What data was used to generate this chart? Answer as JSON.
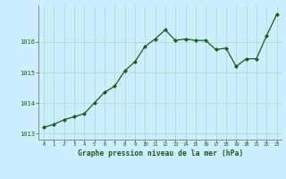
{
  "x": [
    0,
    1,
    2,
    3,
    4,
    5,
    6,
    7,
    8,
    9,
    10,
    11,
    12,
    13,
    14,
    15,
    16,
    17,
    18,
    19,
    20,
    21,
    22,
    23
  ],
  "y": [
    1013.2,
    1013.3,
    1013.45,
    1013.55,
    1013.65,
    1014.0,
    1014.35,
    1014.55,
    1015.05,
    1015.35,
    1015.85,
    1016.1,
    1016.4,
    1016.05,
    1016.1,
    1016.05,
    1016.05,
    1015.75,
    1015.8,
    1015.2,
    1015.45,
    1015.45,
    1016.2,
    1016.9
  ],
  "line_color": "#1a5c1a",
  "marker_color": "#1a5c1a",
  "bg_color": "#cceeff",
  "grid_color": "#b0d8c8",
  "xlabel": "Graphe pression niveau de la mer (hPa)",
  "xlabel_color": "#1a5c1a",
  "tick_color": "#1a5c1a",
  "ylim": [
    1012.8,
    1017.2
  ],
  "yticks": [
    1013,
    1014,
    1015,
    1016
  ],
  "marker": "D",
  "markersize": 2.0,
  "linewidth": 0.9
}
